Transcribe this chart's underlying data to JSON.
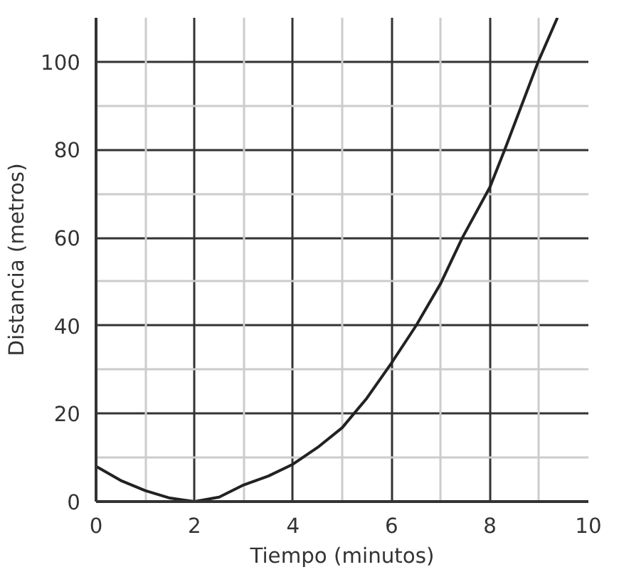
{
  "chart_data": {
    "type": "line",
    "xlabel": "Tiempo (minutos)",
    "ylabel": "Distancia (metros)",
    "x": [
      0,
      0.5,
      1,
      1.5,
      2,
      2.5,
      3,
      3.5,
      4,
      4.5,
      5,
      5.5,
      6,
      6.5,
      7,
      7.44,
      8,
      8.3,
      8.98,
      9.37
    ],
    "series": [
      {
        "color": "#222222",
        "values": [
          8,
          4.8,
          2.5,
          0.8,
          0,
          1,
          3.8,
          5.8,
          8.5,
          12.3,
          16.8,
          23.5,
          31.5,
          40,
          49.6,
          60,
          71.5,
          80,
          100,
          110
        ]
      }
    ],
    "xlim": [
      0,
      10
    ],
    "ylim": [
      0,
      110
    ],
    "xticks": [
      0,
      2,
      4,
      6,
      8,
      10
    ],
    "yticks": [
      0,
      20,
      40,
      60,
      80,
      100
    ],
    "grid": true,
    "marker": "none",
    "line_style": "solid"
  }
}
